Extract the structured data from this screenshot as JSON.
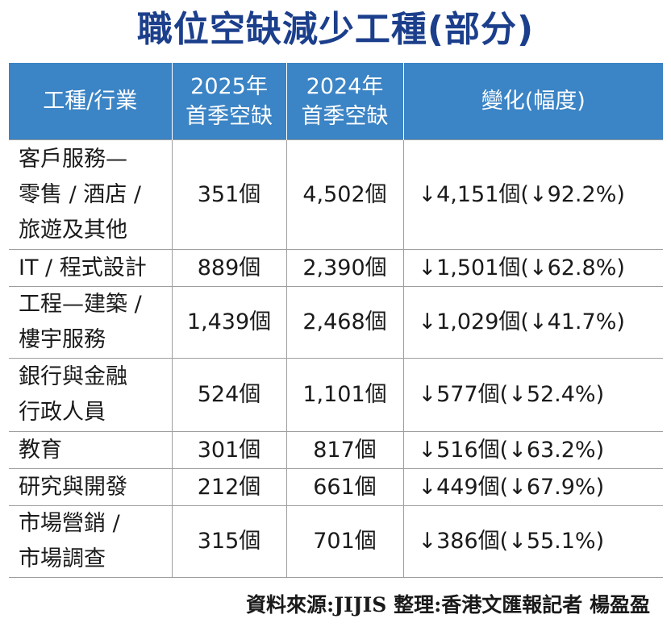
{
  "chart_data": {
    "type": "table",
    "title": "職位空缺減少工種(部分)",
    "headers": {
      "category": "工種/行業",
      "col_2025": [
        "2025年",
        "首季空缺"
      ],
      "col_2024": [
        "2024年",
        "首季空缺"
      ],
      "change": "變化(幅度)"
    },
    "rows": [
      {
        "category": [
          "客戶服務—",
          "零售 / 酒店 /",
          "旅遊及其他"
        ],
        "v2025": "351個",
        "v2024": "4,502個",
        "change": "↓4,151個(↓92.2%)"
      },
      {
        "category": [
          "IT / 程式設計"
        ],
        "v2025": "889個",
        "v2024": "2,390個",
        "change": "↓1,501個(↓62.8%)"
      },
      {
        "category": [
          "工程—建築 /",
          "樓宇服務"
        ],
        "v2025": "1,439個",
        "v2024": "2,468個",
        "change": "↓1,029個(↓41.7%)"
      },
      {
        "category": [
          "銀行與金融",
          "行政人員"
        ],
        "v2025": "524個",
        "v2024": "1,101個",
        "change": "↓577個(↓52.4%)"
      },
      {
        "category": [
          "教育"
        ],
        "v2025": "301個",
        "v2024": "817個",
        "change": "↓516個(↓63.2%)"
      },
      {
        "category": [
          "研究與開發"
        ],
        "v2025": "212個",
        "v2024": "661個",
        "change": "↓449個(↓67.9%)"
      },
      {
        "category": [
          "市場營銷 /",
          "市場調查"
        ],
        "v2025": "315個",
        "v2024": "701個",
        "change": "↓386個(↓55.1%)"
      }
    ],
    "source": "資料來源:JIJIS 整理:香港文匯報記者 楊盈盈"
  },
  "colors": {
    "title": "#1c3f8c",
    "header_bg": "#3b84c5",
    "header_text": "#ffffff",
    "grid_line": "#9e9e9e"
  }
}
